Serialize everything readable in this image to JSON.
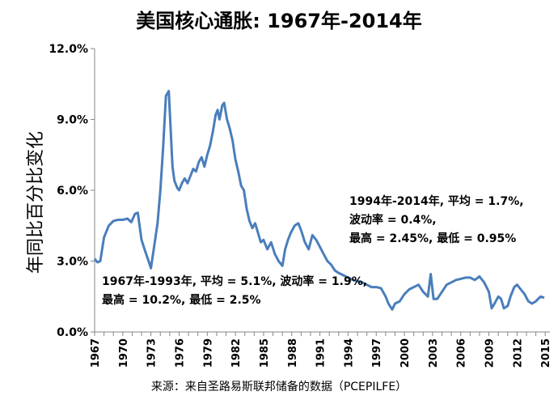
{
  "chart_data": {
    "type": "line",
    "title": "美国核心通胀: 1967年-2014年",
    "ylabel": "年同比百分比变化",
    "xlabel": "",
    "source": "来源：来自圣路易斯联邦储备的数据（PCEPILFE）",
    "ylim": [
      0,
      12
    ],
    "xlim": [
      1967,
      2015.5
    ],
    "yticks": [
      "0.0%",
      "3.0%",
      "6.0%",
      "9.0%",
      "12.0%"
    ],
    "xticks": [
      "1967",
      "1970",
      "1973",
      "1976",
      "1979",
      "1982",
      "1985",
      "1988",
      "1991",
      "1994",
      "1997",
      "2000",
      "2003",
      "2006",
      "2009",
      "2012",
      "2015"
    ],
    "line_color": "#4a7ebb",
    "grid": false,
    "series": [
      {
        "x": [
          1967.0,
          1967.3,
          1967.6,
          1968.0,
          1968.5,
          1969.0,
          1969.5,
          1970.0,
          1970.5,
          1970.9,
          1971.3,
          1971.6,
          1972.0,
          1972.4,
          1972.8,
          1973.0,
          1973.3,
          1973.7,
          1974.0,
          1974.3,
          1974.6,
          1974.9,
          1975.1,
          1975.3,
          1975.5,
          1975.8,
          1976.0,
          1976.3,
          1976.6,
          1976.9,
          1977.2,
          1977.5,
          1977.8,
          1978.1,
          1978.4,
          1978.7,
          1979.0,
          1979.3,
          1979.6,
          1979.9,
          1980.1,
          1980.3,
          1980.6,
          1980.8,
          1981.1,
          1981.4,
          1981.7,
          1982.0,
          1982.3,
          1982.6,
          1982.9,
          1983.2,
          1983.5,
          1983.8,
          1984.1,
          1984.4,
          1984.7,
          1985.0,
          1985.4,
          1985.8,
          1986.2,
          1986.6,
          1987.0,
          1987.3,
          1987.6,
          1987.9,
          1988.3,
          1988.7,
          1989.0,
          1989.4,
          1989.8,
          1990.2,
          1990.6,
          1991.0,
          1991.4,
          1991.8,
          1992.2,
          1992.6,
          1993.0,
          1993.5,
          1994.0,
          1994.5,
          1995.0,
          1995.5,
          1996.0,
          1996.5,
          1997.0,
          1997.5,
          1998.0,
          1998.3,
          1998.7,
          1999.0,
          1999.5,
          2000.0,
          2000.5,
          2001.0,
          2001.5,
          2002.0,
          2002.5,
          2002.8,
          2003.1,
          2003.5,
          2004.0,
          2004.5,
          2005.0,
          2005.5,
          2006.0,
          2006.5,
          2007.0,
          2007.5,
          2008.0,
          2008.5,
          2009.0,
          2009.3,
          2009.6,
          2010.0,
          2010.3,
          2010.6,
          2011.0,
          2011.3,
          2011.7,
          2012.0,
          2012.4,
          2012.8,
          2013.2,
          2013.6,
          2014.0,
          2014.5,
          2014.9
        ],
        "y": [
          3.1,
          2.95,
          3.0,
          4.0,
          4.5,
          4.7,
          4.75,
          4.75,
          4.8,
          4.65,
          5.0,
          5.05,
          3.9,
          3.4,
          2.95,
          2.7,
          3.5,
          4.6,
          6.0,
          7.8,
          10.0,
          10.2,
          8.6,
          7.0,
          6.4,
          6.1,
          6.0,
          6.3,
          6.5,
          6.3,
          6.6,
          6.9,
          6.8,
          7.2,
          7.4,
          7.0,
          7.5,
          7.9,
          8.5,
          9.2,
          9.4,
          9.0,
          9.6,
          9.7,
          9.0,
          8.6,
          8.1,
          7.3,
          6.8,
          6.2,
          6.0,
          5.2,
          4.7,
          4.4,
          4.6,
          4.2,
          3.8,
          3.9,
          3.5,
          3.8,
          3.3,
          3.0,
          2.8,
          3.5,
          3.9,
          4.2,
          4.5,
          4.6,
          4.3,
          3.8,
          3.5,
          4.1,
          3.9,
          3.6,
          3.3,
          3.0,
          2.85,
          2.6,
          2.5,
          2.4,
          2.3,
          2.2,
          2.15,
          2.1,
          2.0,
          1.9,
          1.9,
          1.85,
          1.5,
          1.2,
          0.95,
          1.2,
          1.3,
          1.6,
          1.8,
          1.9,
          2.0,
          1.7,
          1.5,
          2.45,
          1.4,
          1.4,
          1.7,
          2.0,
          2.1,
          2.2,
          2.25,
          2.3,
          2.3,
          2.2,
          2.35,
          2.1,
          1.7,
          1.0,
          1.2,
          1.5,
          1.4,
          1.0,
          1.1,
          1.5,
          1.9,
          2.0,
          1.8,
          1.6,
          1.3,
          1.2,
          1.3,
          1.5,
          1.45
        ]
      }
    ]
  },
  "annotations": {
    "first": {
      "line1": "1967年-1993年, 平均 = 5.1%, 波动率 = 1.9%,",
      "line2": "最高 = 10.2%, 最低 = 2.5%"
    },
    "second": {
      "line1": "1994年-2014年, 平均 = 1.7%,",
      "line2": "波动率 = 0.4%,",
      "line3": "最高 = 2.45%, 最低 = 0.95%"
    }
  }
}
